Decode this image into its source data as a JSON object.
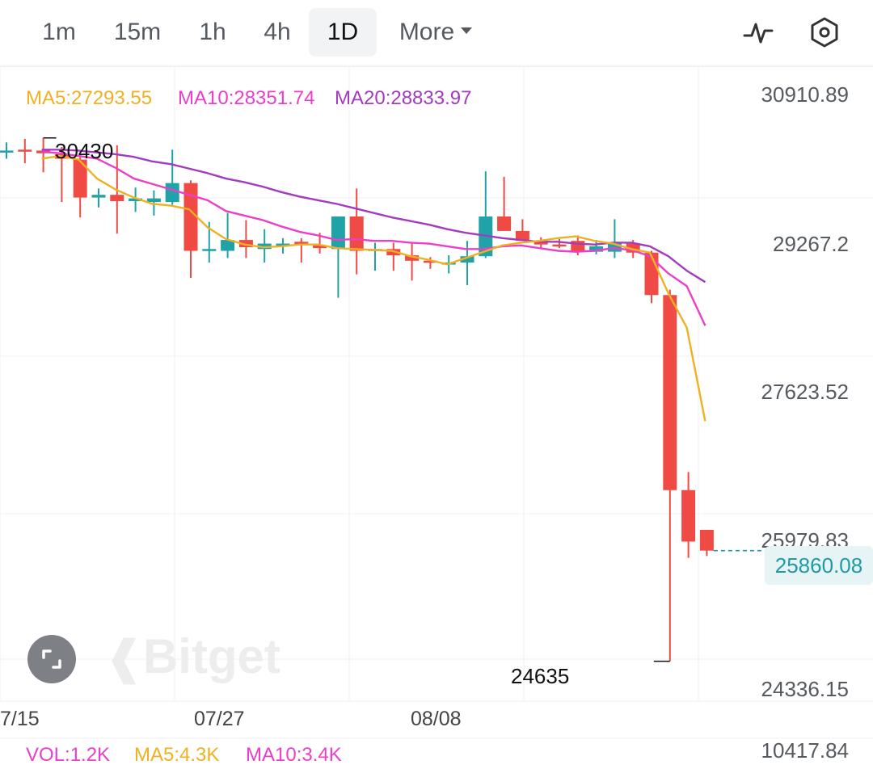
{
  "toolbar": {
    "tabs": [
      {
        "label": "1m",
        "active": false
      },
      {
        "label": "15m",
        "active": false
      },
      {
        "label": "1h",
        "active": false
      },
      {
        "label": "4h",
        "active": false
      },
      {
        "label": "1D",
        "active": true
      }
    ],
    "more_label": "More",
    "indicator_icon": "pulse-line-icon",
    "settings_icon": "hexagon-settings-icon"
  },
  "ma": {
    "ma5": "MA5:27293.55",
    "ma10": "MA10:28351.74",
    "ma20": "MA20:28833.97"
  },
  "price_axis": [
    "30910.89",
    "29267.2",
    "27623.52",
    "25979.83",
    "24336.15"
  ],
  "date_axis": [
    "7/15",
    "07/27",
    "08/08"
  ],
  "current_price": "25860.08",
  "high_label": "30430",
  "low_label": "24635",
  "volume": {
    "vol": "VOL:1.2K",
    "ma5": "MA5:4.3K",
    "ma10": "MA10:3.4K",
    "axis_value": "10417.84"
  },
  "watermark": "Bitget",
  "colors": {
    "up": "#1fa3a8",
    "down": "#ef4a43",
    "ma5": "#efb122",
    "ma10": "#ec3ec8",
    "ma20": "#a23bc0",
    "grid": "#f0f0f0",
    "current_price": "#1f9aa8"
  },
  "chart_data": {
    "type": "candlestick",
    "ylim": [
      24336.15,
      30910.89
    ],
    "candles": [
      {
        "o": 30290,
        "h": 30380,
        "l": 30200,
        "c": 30290
      },
      {
        "o": 30300,
        "h": 30420,
        "l": 30150,
        "c": 30280
      },
      {
        "o": 30290,
        "h": 30430,
        "l": 30050,
        "c": 30260
      },
      {
        "o": 30250,
        "h": 30330,
        "l": 29720,
        "c": 30200
      },
      {
        "o": 30190,
        "h": 30250,
        "l": 29550,
        "c": 29770
      },
      {
        "o": 29770,
        "h": 29870,
        "l": 29660,
        "c": 29800
      },
      {
        "o": 29800,
        "h": 30350,
        "l": 29370,
        "c": 29730
      },
      {
        "o": 29730,
        "h": 29880,
        "l": 29610,
        "c": 29760
      },
      {
        "o": 29720,
        "h": 29850,
        "l": 29570,
        "c": 29760
      },
      {
        "o": 29720,
        "h": 30300,
        "l": 29690,
        "c": 29930
      },
      {
        "o": 29930,
        "h": 29960,
        "l": 28880,
        "c": 29180
      },
      {
        "o": 29180,
        "h": 29500,
        "l": 29050,
        "c": 29200
      },
      {
        "o": 29180,
        "h": 29600,
        "l": 29100,
        "c": 29300
      },
      {
        "o": 29300,
        "h": 29520,
        "l": 29100,
        "c": 29220
      },
      {
        "o": 29200,
        "h": 29420,
        "l": 29050,
        "c": 29260
      },
      {
        "o": 29250,
        "h": 29320,
        "l": 29150,
        "c": 29260
      },
      {
        "o": 29280,
        "h": 29320,
        "l": 29050,
        "c": 29250
      },
      {
        "o": 29240,
        "h": 29380,
        "l": 29150,
        "c": 29210
      },
      {
        "o": 29200,
        "h": 29520,
        "l": 28660,
        "c": 29560
      },
      {
        "o": 29560,
        "h": 29870,
        "l": 28920,
        "c": 29180
      },
      {
        "o": 29200,
        "h": 29270,
        "l": 28960,
        "c": 29200
      },
      {
        "o": 29200,
        "h": 29270,
        "l": 28960,
        "c": 29130
      },
      {
        "o": 29130,
        "h": 29260,
        "l": 28850,
        "c": 29070
      },
      {
        "o": 29070,
        "h": 29110,
        "l": 28980,
        "c": 29050
      },
      {
        "o": 29050,
        "h": 29130,
        "l": 28930,
        "c": 29050
      },
      {
        "o": 29050,
        "h": 29290,
        "l": 28800,
        "c": 29120
      },
      {
        "o": 29120,
        "h": 30060,
        "l": 29100,
        "c": 29560
      },
      {
        "o": 29560,
        "h": 30000,
        "l": 29400,
        "c": 29400
      },
      {
        "o": 29400,
        "h": 29530,
        "l": 29340,
        "c": 29290
      },
      {
        "o": 29290,
        "h": 29330,
        "l": 29200,
        "c": 29250
      },
      {
        "o": 29250,
        "h": 29310,
        "l": 29210,
        "c": 29240
      },
      {
        "o": 29290,
        "h": 29350,
        "l": 29130,
        "c": 29170
      },
      {
        "o": 29170,
        "h": 29300,
        "l": 29140,
        "c": 29230
      },
      {
        "o": 29170,
        "h": 29530,
        "l": 29100,
        "c": 29260
      },
      {
        "o": 29260,
        "h": 29300,
        "l": 29100,
        "c": 29160
      },
      {
        "o": 29160,
        "h": 29180,
        "l": 28600,
        "c": 28690
      },
      {
        "o": 28690,
        "h": 28750,
        "l": 24635,
        "c": 26530
      },
      {
        "o": 26530,
        "h": 26730,
        "l": 25780,
        "c": 25960
      },
      {
        "o": 26090,
        "h": 26090,
        "l": 25800,
        "c": 25860
      }
    ],
    "ma5": [
      30200,
      30230,
      30190,
      29980,
      29860,
      29770,
      29700,
      29680,
      29640,
      29440,
      29310,
      29250,
      29220,
      29230,
      29250,
      29250,
      29210,
      29200,
      29190,
      29180,
      29120,
      29080,
      29030,
      29100,
      29170,
      29240,
      29270,
      29290,
      29320,
      29340,
      29290,
      29260,
      29200,
      29160,
      28710,
      28330,
      27293.55
    ],
    "ma10": [
      30280,
      30260,
      30230,
      30200,
      30100,
      29980,
      29920,
      29860,
      29800,
      29740,
      29620,
      29570,
      29520,
      29450,
      29390,
      29350,
      29300,
      29310,
      29290,
      29290,
      29270,
      29260,
      29230,
      29200,
      29200,
      29230,
      29240,
      29210,
      29180,
      29170,
      29180,
      29210,
      29190,
      29120,
      28930,
      28790,
      28351.74
    ],
    "ma20": [
      30300,
      30300,
      30290,
      30270,
      30250,
      30220,
      30170,
      30140,
      30090,
      30040,
      29980,
      29940,
      29890,
      29830,
      29780,
      29740,
      29700,
      29650,
      29600,
      29550,
      29510,
      29470,
      29420,
      29380,
      29350,
      29320,
      29300,
      29280,
      29280,
      29260,
      29250,
      29270,
      29270,
      29230,
      29120,
      28960,
      28833.97
    ]
  }
}
